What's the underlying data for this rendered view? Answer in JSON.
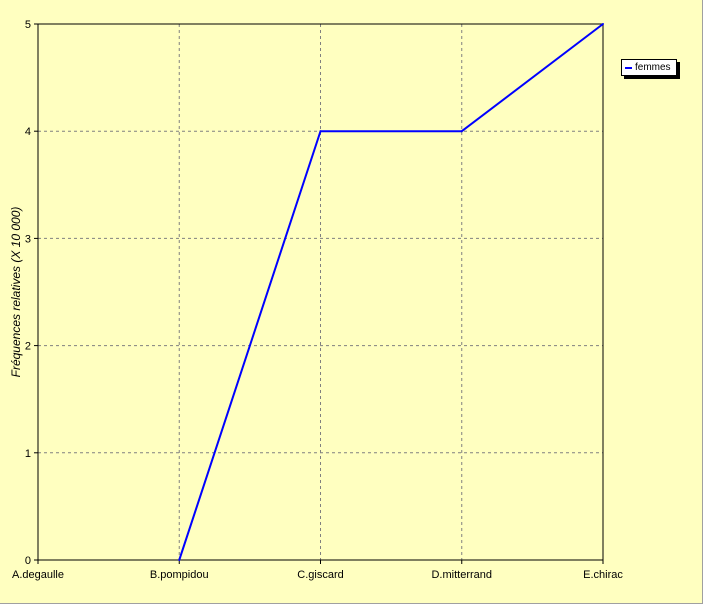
{
  "chart_data": {
    "type": "line",
    "categories": [
      "A.degaulle",
      "B.pompidou",
      "C.giscard",
      "D.mitterrand",
      "E.chirac"
    ],
    "series": [
      {
        "name": "femmes",
        "values": [
          null,
          0,
          4,
          4,
          5
        ],
        "color": "#0000ff"
      }
    ],
    "title": "",
    "xlabel": "",
    "ylabel": "Fréquences relatives (X 10 000)",
    "ylim": [
      0,
      5
    ],
    "yticks": [
      "0",
      "1",
      "2",
      "3",
      "4",
      "5"
    ],
    "grid": true,
    "legend": "top-right",
    "background_color": "#ffffc0",
    "grid_color": "#808080"
  }
}
